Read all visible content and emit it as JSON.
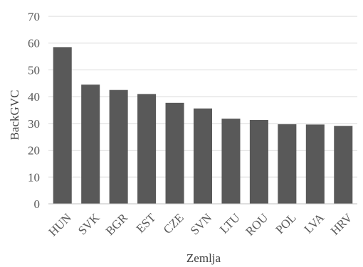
{
  "chart_data": {
    "type": "bar",
    "title": "",
    "xlabel": "Zemlja",
    "ylabel": "BackGVC",
    "ylim": [
      0,
      70
    ],
    "yticks": [
      0,
      10,
      20,
      30,
      40,
      50,
      60,
      70
    ],
    "grid": true,
    "legend": "none",
    "bar_color": "#595959",
    "categories": [
      "HUN",
      "SVK",
      "BGR",
      "EST",
      "CZE",
      "SVN",
      "LTU",
      "ROU",
      "POL",
      "LVA",
      "HRV"
    ],
    "values": [
      58.5,
      44.5,
      42.5,
      41.0,
      37.7,
      35.6,
      31.8,
      31.3,
      29.7,
      29.6,
      29.1
    ]
  }
}
